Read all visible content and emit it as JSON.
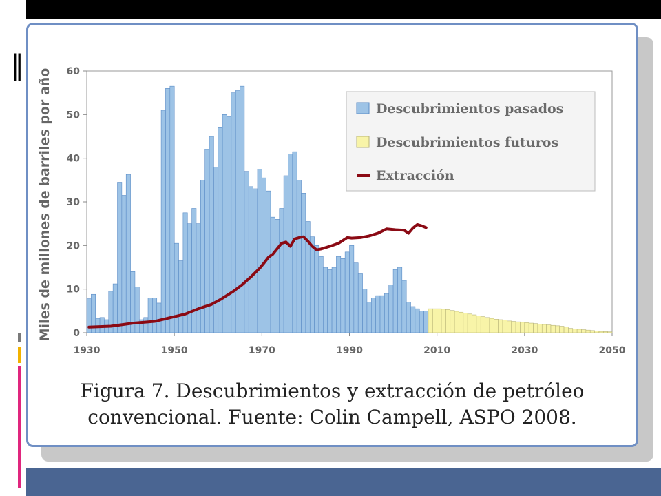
{
  "colors": {
    "past": "#9dc3e6",
    "past_edge": "#5b8cc6",
    "future": "#f8f4a8",
    "future_edge": "#b8b478",
    "extraction": "#8b0a14",
    "panel_border": "#6f8fc4",
    "footer": "#4a6592"
  },
  "caption": {
    "line1": "Figura 7. Descubrimientos y extracción de petróleo",
    "line2": "convencional.  Fuente: Colin Campell, ASPO 2008."
  },
  "chart_data": {
    "type": "bar",
    "title": "",
    "xlabel": "",
    "ylabel": "Miles de millones de barriles por año",
    "xlim": [
      1930,
      2050
    ],
    "ylim": [
      0,
      60
    ],
    "xticks": [
      "1930",
      "1950",
      "1970",
      "1990",
      "2010",
      "2030",
      "2050"
    ],
    "yticks": [
      "0",
      "10",
      "20",
      "30",
      "40",
      "50",
      "60"
    ],
    "grid": false,
    "legend_position": "top-right",
    "legend": [
      {
        "label": "Descubrimientos pasados",
        "kind": "bar",
        "series": "past"
      },
      {
        "label": "Descubrimientos futuros",
        "kind": "bar",
        "series": "future"
      },
      {
        "label": "Extracción",
        "kind": "line",
        "series": "extraction"
      }
    ],
    "series": [
      {
        "name": "Descubrimientos pasados",
        "type": "bar",
        "x": [
          1930,
          1931,
          1932,
          1933,
          1934,
          1935,
          1936,
          1937,
          1938,
          1939,
          1940,
          1941,
          1942,
          1943,
          1944,
          1945,
          1946,
          1947,
          1948,
          1949,
          1950,
          1951,
          1952,
          1953,
          1954,
          1955,
          1956,
          1957,
          1958,
          1959,
          1960,
          1961,
          1962,
          1963,
          1964,
          1965,
          1966,
          1967,
          1968,
          1969,
          1970,
          1971,
          1972,
          1973,
          1974,
          1975,
          1976,
          1977,
          1978,
          1979,
          1980,
          1981,
          1982,
          1983,
          1984,
          1985,
          1986,
          1987,
          1988,
          1989,
          1990,
          1991,
          1992,
          1993,
          1994,
          1995,
          1996,
          1997,
          1998,
          1999,
          2000,
          2001,
          2002,
          2003,
          2004,
          2005,
          2006,
          2007
        ],
        "values": [
          7.8,
          8.8,
          3.3,
          3.5,
          3.0,
          9.5,
          11.2,
          34.5,
          31.5,
          36.3,
          14.0,
          10.5,
          3.0,
          3.5,
          8.0,
          8.0,
          6.8,
          51.0,
          56.0,
          56.5,
          20.5,
          16.5,
          27.5,
          25.0,
          28.5,
          25.0,
          35.0,
          42.0,
          45.0,
          38.0,
          47.0,
          50.0,
          49.5,
          55.0,
          55.5,
          56.5,
          37.0,
          33.5,
          33.0,
          37.5,
          35.5,
          32.5,
          26.5,
          26.0,
          28.5,
          36.0,
          41.0,
          41.5,
          35.0,
          32.0,
          25.5,
          22.0,
          20.0,
          17.5,
          15.0,
          14.5,
          15.0,
          17.5,
          17.0,
          18.5,
          20.0,
          16.0,
          13.5,
          10.0,
          7.0,
          8.0,
          8.5,
          8.5,
          9.0,
          11.0,
          14.5,
          15.0,
          12.0,
          7.0,
          6.0,
          5.5,
          5.0,
          5.0
        ]
      },
      {
        "name": "Descubrimientos futuros",
        "type": "bar",
        "x": [
          2008,
          2009,
          2010,
          2011,
          2012,
          2013,
          2014,
          2015,
          2016,
          2017,
          2018,
          2019,
          2020,
          2021,
          2022,
          2023,
          2024,
          2025,
          2026,
          2027,
          2028,
          2029,
          2030,
          2031,
          2032,
          2033,
          2034,
          2035,
          2036,
          2037,
          2038,
          2039,
          2040,
          2041,
          2042,
          2043,
          2044,
          2045,
          2046,
          2047,
          2048,
          2049
        ],
        "values": [
          5.5,
          5.5,
          5.5,
          5.4,
          5.3,
          5.1,
          4.9,
          4.7,
          4.5,
          4.3,
          4.1,
          3.9,
          3.7,
          3.5,
          3.3,
          3.1,
          3.0,
          2.9,
          2.7,
          2.6,
          2.5,
          2.4,
          2.3,
          2.2,
          2.1,
          2.0,
          1.9,
          1.8,
          1.7,
          1.6,
          1.5,
          1.3,
          1.0,
          0.9,
          0.8,
          0.7,
          0.6,
          0.5,
          0.4,
          0.3,
          0.25,
          0.2
        ]
      },
      {
        "name": "Extracción",
        "type": "line",
        "x": [
          1930,
          1935,
          1940,
          1945,
          1950,
          1952,
          1955,
          1958,
          1960,
          1963,
          1965,
          1967,
          1969,
          1970,
          1971,
          1972,
          1974,
          1975,
          1976,
          1977,
          1978,
          1979,
          1980,
          1981,
          1982,
          1983,
          1985,
          1987,
          1989,
          1990,
          1992,
          1994,
          1996,
          1998,
          2000,
          2002,
          2003,
          2004,
          2005,
          2006,
          2007
        ],
        "values": [
          1.3,
          1.5,
          2.2,
          2.6,
          3.8,
          4.3,
          5.5,
          6.5,
          7.6,
          9.5,
          11.0,
          12.8,
          14.8,
          16.0,
          17.3,
          18.0,
          20.5,
          20.8,
          19.8,
          21.5,
          21.8,
          22.0,
          21.0,
          19.8,
          19.0,
          19.2,
          19.8,
          20.5,
          21.8,
          21.7,
          21.8,
          22.2,
          22.8,
          23.8,
          23.6,
          23.5,
          22.8,
          24.0,
          24.8,
          24.5,
          24.1
        ]
      }
    ]
  }
}
